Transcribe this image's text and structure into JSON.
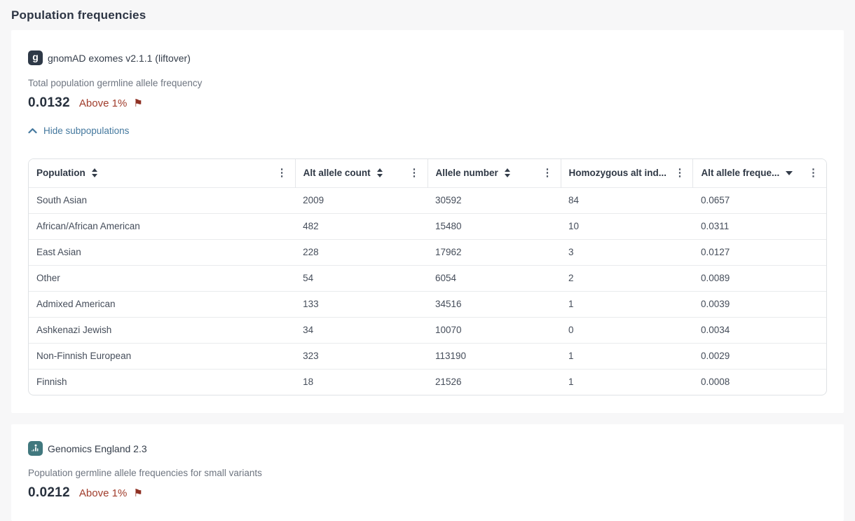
{
  "page": {
    "title": "Population frequencies"
  },
  "icons": {
    "kebab": "⋮",
    "flag": "⚑"
  },
  "colors": {
    "accent_red": "#a03c2b",
    "flag_red": "#8f3124",
    "link_blue": "#44789e",
    "badge_gnomad_bg": "#2e3947",
    "badge_ge_bg": "#41787e"
  },
  "gnomad": {
    "badge_letter": "g",
    "source": "gnomAD exomes v2.1.1 (liftover)",
    "metric_label": "Total population germline allele frequency",
    "value": "0.0132",
    "flag_label": "Above 1%",
    "toggle_label": "Hide subpopulations",
    "toggle_state": "expanded",
    "table": {
      "columns": [
        {
          "label": "Population",
          "sort": "unsorted"
        },
        {
          "label": "Alt allele count",
          "sort": "unsorted"
        },
        {
          "label": "Allele number",
          "sort": "unsorted"
        },
        {
          "label": "Homozygous alt ind...",
          "sort": "none"
        },
        {
          "label": "Alt allele freque...",
          "sort": "desc"
        }
      ],
      "rows": [
        {
          "population": "South Asian",
          "alt_allele_count": "2009",
          "allele_number": "30592",
          "homozygous_alt_individuals": "84",
          "alt_allele_frequency": "0.0657"
        },
        {
          "population": "African/African American",
          "alt_allele_count": "482",
          "allele_number": "15480",
          "homozygous_alt_individuals": "10",
          "alt_allele_frequency": "0.0311"
        },
        {
          "population": "East Asian",
          "alt_allele_count": "228",
          "allele_number": "17962",
          "homozygous_alt_individuals": "3",
          "alt_allele_frequency": "0.0127"
        },
        {
          "population": "Other",
          "alt_allele_count": "54",
          "allele_number": "6054",
          "homozygous_alt_individuals": "2",
          "alt_allele_frequency": "0.0089"
        },
        {
          "population": "Admixed American",
          "alt_allele_count": "133",
          "allele_number": "34516",
          "homozygous_alt_individuals": "1",
          "alt_allele_frequency": "0.0039"
        },
        {
          "population": "Ashkenazi Jewish",
          "alt_allele_count": "34",
          "allele_number": "10070",
          "homozygous_alt_individuals": "0",
          "alt_allele_frequency": "0.0034"
        },
        {
          "population": "Non-Finnish European",
          "alt_allele_count": "323",
          "allele_number": "113190",
          "homozygous_alt_individuals": "1",
          "alt_allele_frequency": "0.0029"
        },
        {
          "population": "Finnish",
          "alt_allele_count": "18",
          "allele_number": "21526",
          "homozygous_alt_individuals": "1",
          "alt_allele_frequency": "0.0008"
        }
      ]
    }
  },
  "genomics_england": {
    "source": "Genomics England 2.3",
    "metric_label": "Population germline allele frequencies for small variants",
    "value": "0.0212",
    "flag_label": "Above 1%"
  }
}
